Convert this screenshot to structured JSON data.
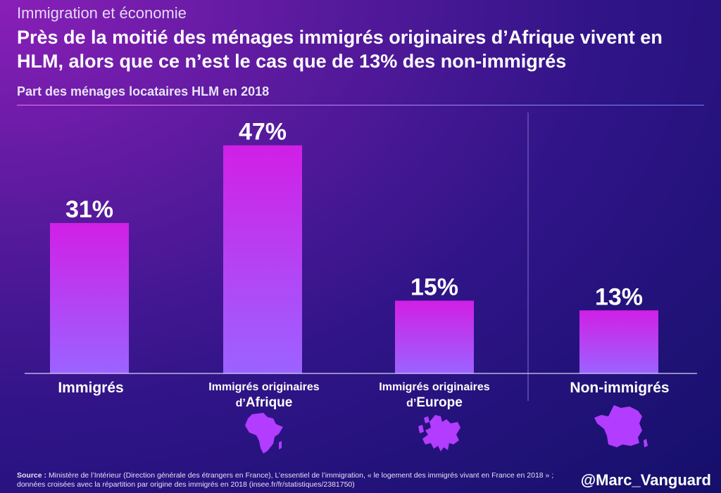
{
  "header": {
    "kicker": "Immigration et économie",
    "title": "Près de la moitié des ménages immigrés originaires d’Afrique vivent en HLM, alors que ce n’est le cas que de 13% des non-immigrés",
    "subtitle": "Part des ménages locataires HLM en 2018"
  },
  "chart_data": {
    "type": "bar",
    "title": "Part des ménages locataires HLM en 2018",
    "unit": "%",
    "categories": [
      "Immigrés",
      "Immigrés originaires d’Afrique",
      "Immigrés originaires d’Europe",
      "Non-immigrés"
    ],
    "values": [
      31,
      47,
      15,
      13
    ],
    "data_labels": [
      "31%",
      "47%",
      "15%",
      "13%"
    ],
    "ylim": [
      0,
      50
    ],
    "grid": false,
    "separator_before_last": true
  },
  "categories": {
    "c1": {
      "label": "Immigrés"
    },
    "c2": {
      "line1": "Immigrés originaires",
      "prefix": "d’",
      "region": "Afrique"
    },
    "c3": {
      "line1": "Immigrés originaires",
      "prefix": "d’",
      "region": "Europe"
    },
    "c4": {
      "label": "Non-immigrés"
    }
  },
  "icons": [
    "africa-map-icon",
    "europe-map-icon",
    "france-map-icon"
  ],
  "colors": {
    "bar_top": "#d11fe6",
    "bar_bottom": "#9b63ff",
    "icon": "#b23cff"
  },
  "footer": {
    "source_label": "Source :",
    "source_text": "Ministère de l’Intérieur (Direction générale des étrangers en France), L’essentiel de l’immigration, « le logement des immigrés vivant en France en 2018 » ; données croisées avec la répartition par origine des immigrés en 2018 (insee.fr/fr/statistiques/2381750)",
    "handle": "@Marc_Vanguard"
  }
}
